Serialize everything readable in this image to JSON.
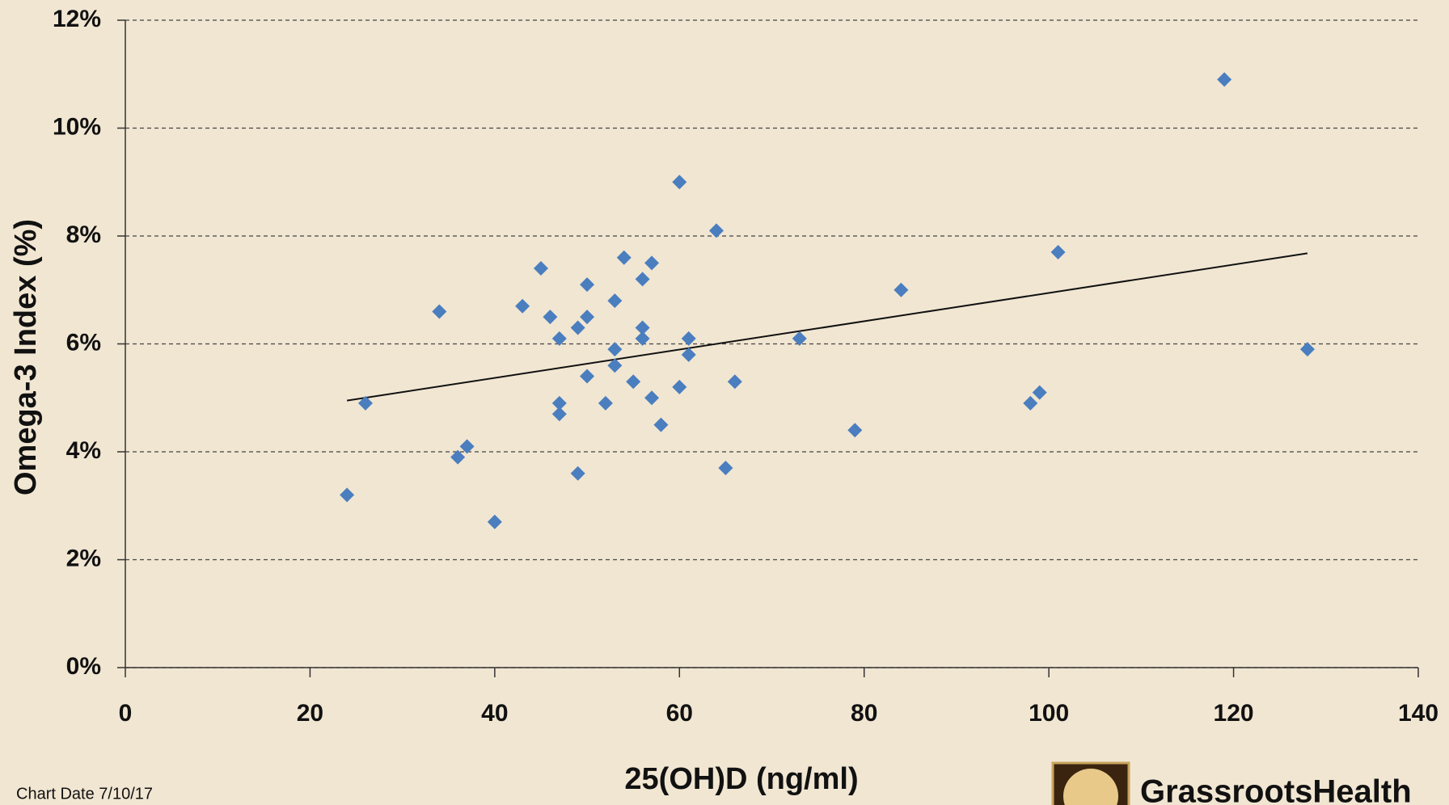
{
  "chart_data": {
    "type": "scatter",
    "x_label": "25(OH)D (ng/ml)",
    "y_label": "Omega-3 Index (%)",
    "note": "Chart Date 7/10/17",
    "brand": "GrassrootsHealth",
    "color": "#4a7ebf",
    "grid": true,
    "xlim": [
      0,
      140
    ],
    "xticks": [
      0,
      20,
      40,
      60,
      80,
      100,
      120,
      140
    ],
    "ylim": [
      0,
      12
    ],
    "yticks": [
      {
        "value": 0,
        "label": "0%"
      },
      {
        "value": 2,
        "label": "2%"
      },
      {
        "value": 4,
        "label": "4%"
      },
      {
        "value": 6,
        "label": "6%"
      },
      {
        "value": 8,
        "label": "8%"
      },
      {
        "value": 10,
        "label": "10%"
      },
      {
        "value": 12,
        "label": "12%"
      }
    ],
    "x": [
      24,
      26,
      34,
      36,
      37,
      40,
      43,
      45,
      46,
      47,
      47,
      47,
      49,
      49,
      50,
      50,
      50,
      52,
      53,
      53,
      53,
      54,
      55,
      56,
      56,
      56,
      57,
      57,
      58,
      60,
      60,
      61,
      61,
      64,
      65,
      66,
      73,
      79,
      84,
      98,
      99,
      101,
      119,
      128
    ],
    "values": [
      3.2,
      4.9,
      6.6,
      3.9,
      4.1,
      2.7,
      6.7,
      7.4,
      6.5,
      6.1,
      4.9,
      4.7,
      6.3,
      3.6,
      7.1,
      6.5,
      5.4,
      4.9,
      6.8,
      5.9,
      5.6,
      7.6,
      5.3,
      7.2,
      6.3,
      6.1,
      7.5,
      5.0,
      4.5,
      9.0,
      5.2,
      6.1,
      5.8,
      8.1,
      3.7,
      5.3,
      6.1,
      4.4,
      7.0,
      4.9,
      5.1,
      7.7,
      10.9,
      5.9
    ],
    "trendline": {
      "x": [
        24,
        128
      ],
      "values": [
        4.95,
        7.68
      ]
    }
  }
}
